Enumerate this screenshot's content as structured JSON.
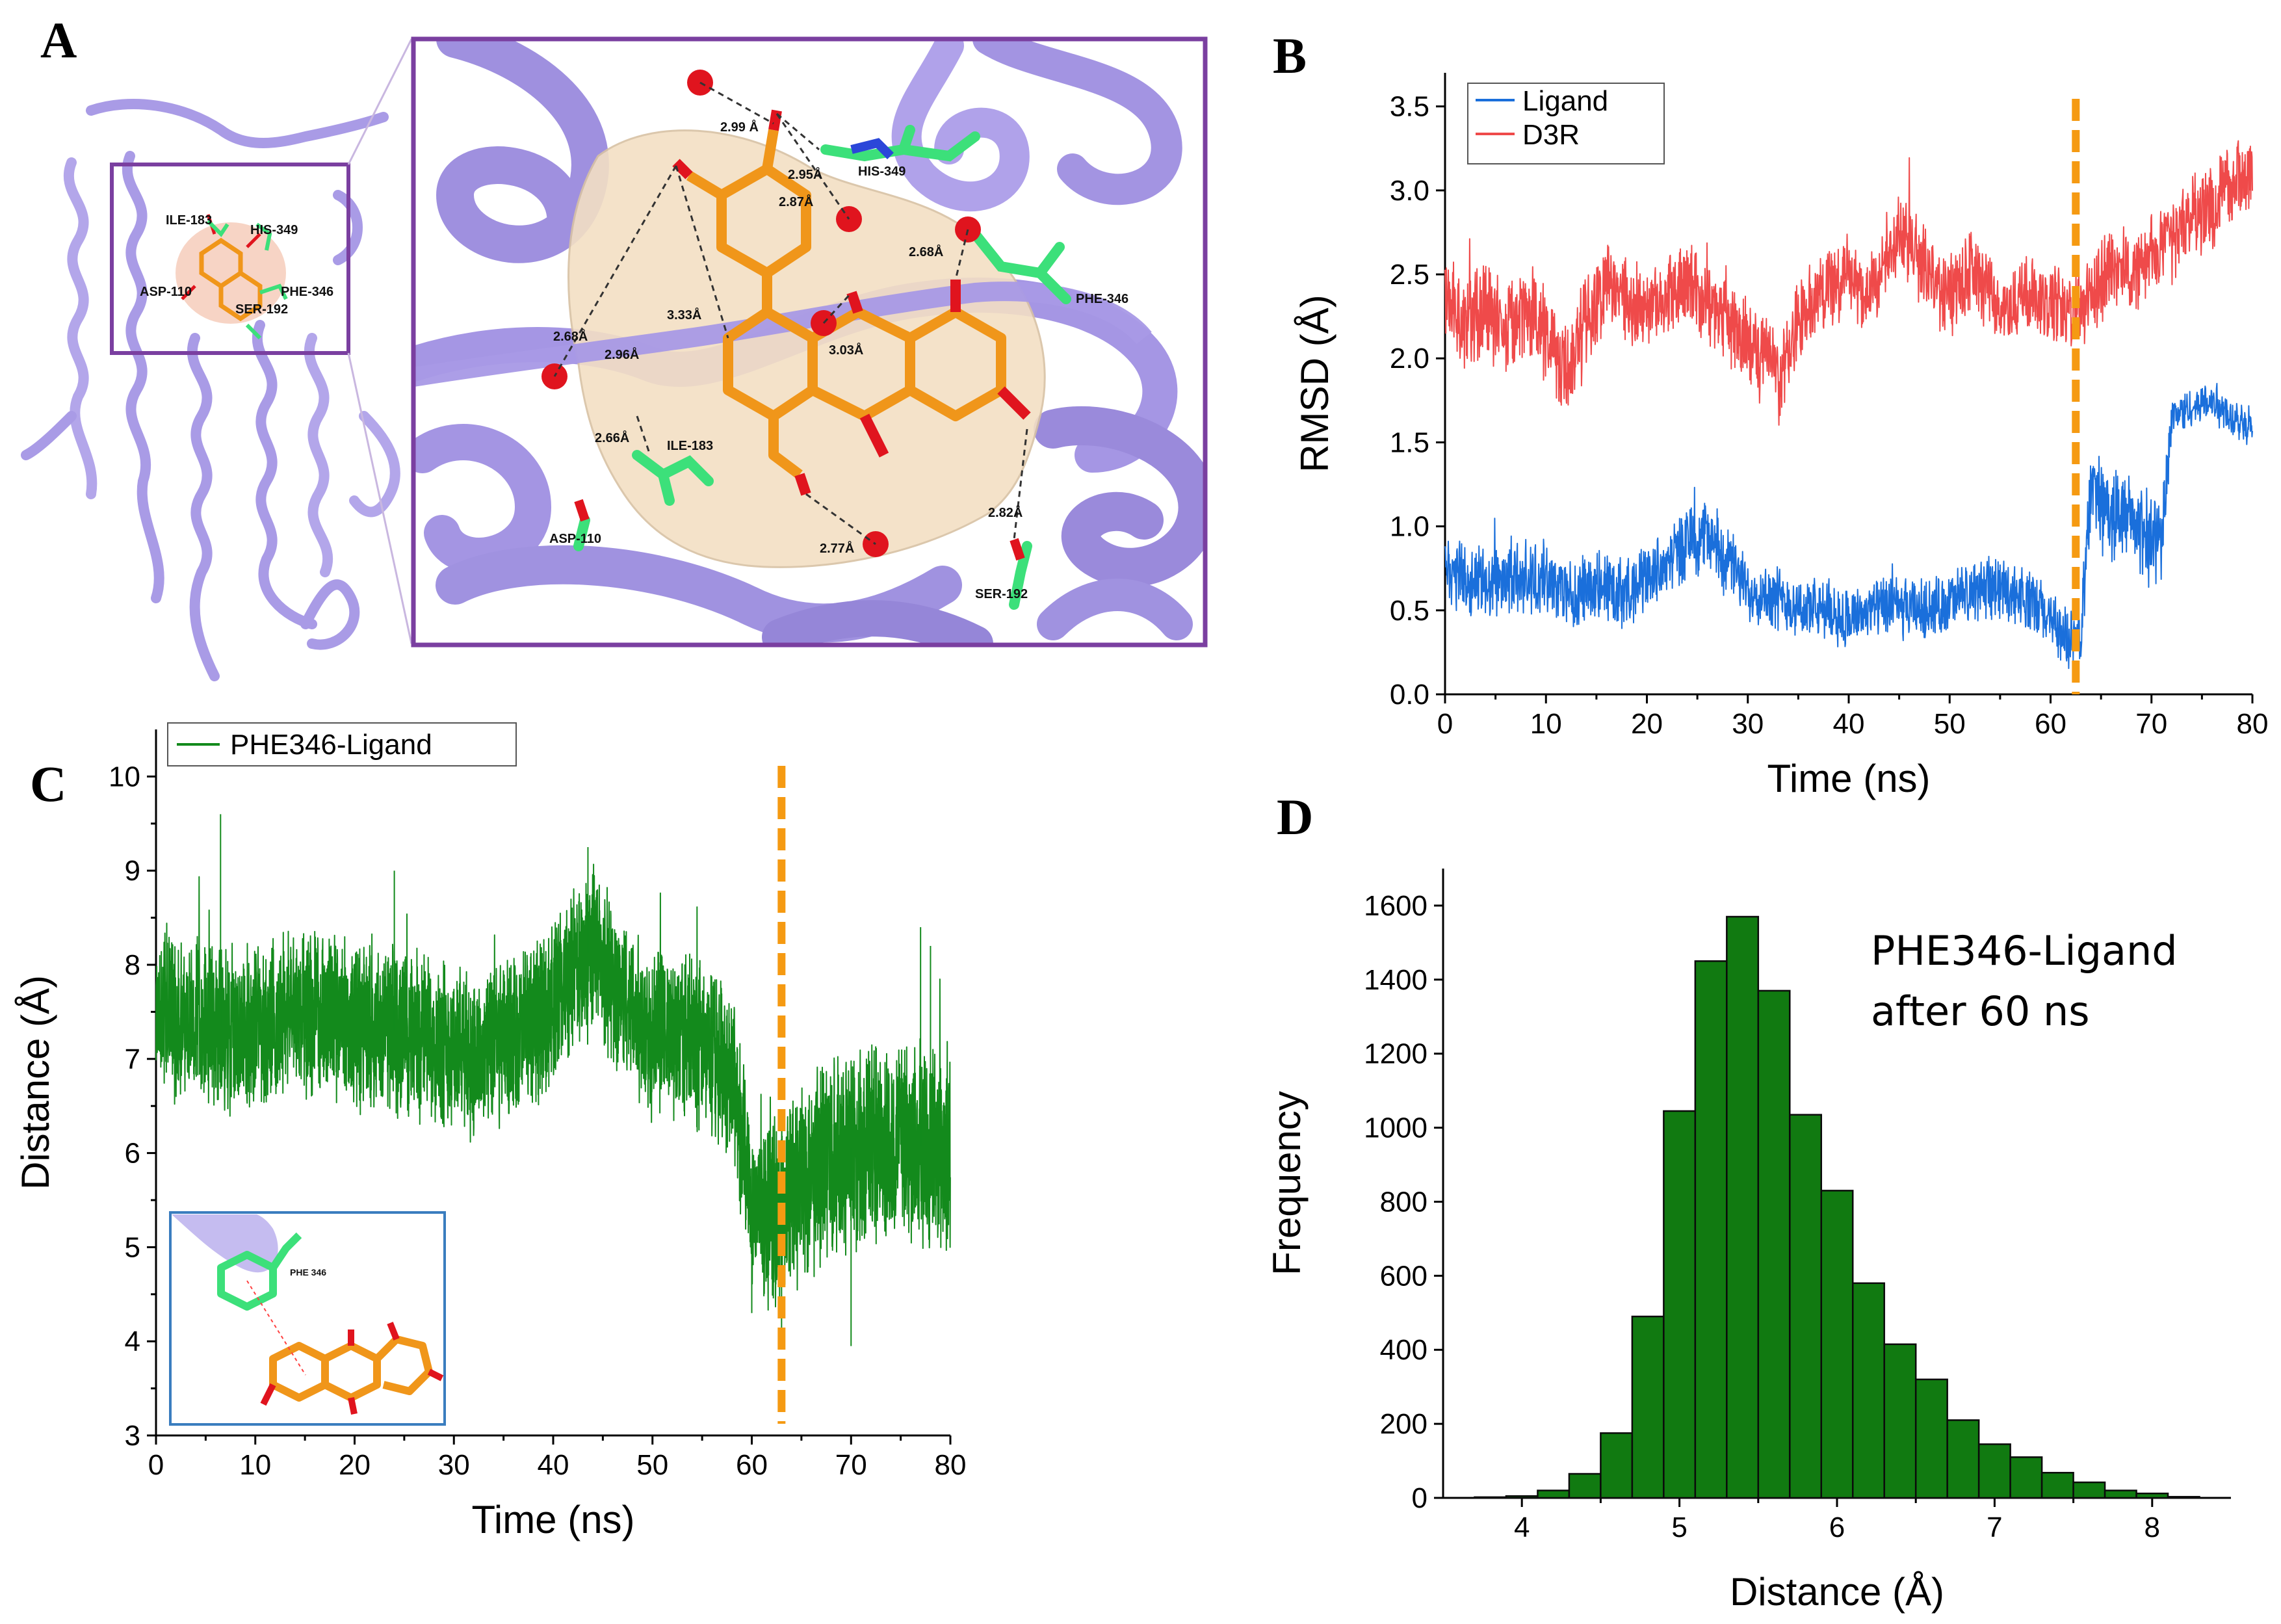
{
  "panels": {
    "A": {
      "letter": "A"
    },
    "B": {
      "letter": "B"
    },
    "C": {
      "letter": "C"
    },
    "D": {
      "letter": "D"
    }
  },
  "panelA": {
    "residues": [
      "ILE-183",
      "HIS-349",
      "ASP-110",
      "PHE-346",
      "SER-192"
    ],
    "zoom_residues": [
      "HIS-349",
      "PHE-346",
      "ILE-183",
      "ASP-110",
      "SER-192"
    ],
    "distances": [
      "2.99 Å",
      "2.95Å",
      "2.87Å",
      "2.68Å",
      "3.33Å",
      "2.68Å",
      "2.96Å",
      "3.03Å",
      "2.66Å",
      "2.77Å",
      "2.82Å"
    ],
    "colors": {
      "protein": "#a99be6",
      "ligand": "#f0961a",
      "residue": "#3ce07a",
      "surface": "#f3dfc4",
      "frame": "#7a3fa0",
      "oxygen": "#e0141e"
    }
  },
  "panelC_inset": {
    "label": "PHE 346"
  },
  "chart_data": [
    {
      "id": "B",
      "type": "line",
      "title": "",
      "xlabel": "Time (ns)",
      "ylabel": "RMSD (Å)",
      "xlim": [
        0,
        80
      ],
      "ylim": [
        0,
        3.7
      ],
      "xticks": [
        0,
        10,
        20,
        30,
        40,
        50,
        60,
        70,
        80
      ],
      "yticks": [
        0.0,
        0.5,
        1.0,
        1.5,
        2.0,
        2.5,
        3.0,
        3.5
      ],
      "ytick_labels": [
        "0.0",
        "0.5",
        "1.0",
        "1.5",
        "2.0",
        "2.5",
        "3.0",
        "3.5"
      ],
      "vline_x": 62.5,
      "legend": [
        "Ligand",
        "D3R"
      ],
      "series": [
        {
          "name": "Ligand",
          "color": "#1a6fdb",
          "x": [
            0,
            2,
            4,
            6,
            8,
            10,
            12,
            14,
            16,
            18,
            20,
            22,
            24,
            26,
            28,
            30,
            32,
            34,
            36,
            38,
            40,
            42,
            44,
            46,
            48,
            50,
            52,
            54,
            56,
            58,
            60,
            62,
            63,
            64,
            66,
            68,
            70,
            71,
            72,
            74,
            76,
            78,
            80
          ],
          "y": [
            0.75,
            0.7,
            0.65,
            0.7,
            0.7,
            0.68,
            0.6,
            0.62,
            0.65,
            0.6,
            0.7,
            0.78,
            0.9,
            0.95,
            0.8,
            0.62,
            0.6,
            0.55,
            0.5,
            0.5,
            0.45,
            0.5,
            0.52,
            0.5,
            0.5,
            0.55,
            0.6,
            0.65,
            0.62,
            0.55,
            0.45,
            0.3,
            0.35,
            1.25,
            1.05,
            1.05,
            0.9,
            0.95,
            1.65,
            1.7,
            1.75,
            1.65,
            1.62
          ],
          "noise": [
            0.35,
            0.35,
            0.35,
            0.35,
            0.35,
            0.35,
            0.35,
            0.35,
            0.35,
            0.35,
            0.35,
            0.35,
            0.35,
            0.35,
            0.35,
            0.3,
            0.3,
            0.3,
            0.3,
            0.3,
            0.3,
            0.3,
            0.3,
            0.3,
            0.3,
            0.3,
            0.3,
            0.3,
            0.3,
            0.3,
            0.3,
            0.3,
            0.3,
            0.45,
            0.45,
            0.45,
            0.45,
            0.45,
            0.2,
            0.2,
            0.2,
            0.2,
            0.2
          ]
        },
        {
          "name": "D3R",
          "color": "#ef4a4a",
          "x": [
            0,
            2,
            4,
            6,
            8,
            10,
            12,
            14,
            16,
            18,
            20,
            22,
            24,
            26,
            28,
            30,
            32,
            33,
            35,
            38,
            40,
            42,
            44,
            45,
            48,
            50,
            52,
            54,
            56,
            58,
            60,
            62,
            64,
            66,
            68,
            70,
            72,
            74,
            76,
            78,
            80
          ],
          "y": [
            2.3,
            2.25,
            2.3,
            2.2,
            2.3,
            2.15,
            1.9,
            2.2,
            2.45,
            2.35,
            2.3,
            2.4,
            2.45,
            2.35,
            2.2,
            2.1,
            2.0,
            1.85,
            2.2,
            2.45,
            2.5,
            2.4,
            2.6,
            2.75,
            2.5,
            2.35,
            2.5,
            2.4,
            2.25,
            2.4,
            2.35,
            2.3,
            2.35,
            2.55,
            2.5,
            2.6,
            2.7,
            2.85,
            2.9,
            3.05,
            3.1
          ],
          "noise": [
            0.45,
            0.45,
            0.45,
            0.45,
            0.45,
            0.45,
            0.45,
            0.45,
            0.4,
            0.4,
            0.4,
            0.4,
            0.4,
            0.4,
            0.4,
            0.4,
            0.4,
            0.4,
            0.4,
            0.4,
            0.4,
            0.4,
            0.4,
            0.4,
            0.4,
            0.4,
            0.4,
            0.4,
            0.4,
            0.4,
            0.4,
            0.4,
            0.4,
            0.4,
            0.4,
            0.4,
            0.4,
            0.4,
            0.4,
            0.4,
            0.4
          ]
        }
      ]
    },
    {
      "id": "C",
      "type": "line",
      "title": "",
      "xlabel": "Time (ns)",
      "ylabel": "Distance (Å)",
      "xlim": [
        0,
        80
      ],
      "ylim": [
        3,
        10.5
      ],
      "xticks": [
        0,
        10,
        20,
        30,
        40,
        50,
        60,
        70,
        80
      ],
      "yticks": [
        3,
        4,
        5,
        6,
        7,
        8,
        9,
        10
      ],
      "ytick_labels": [
        "3",
        "4",
        "5",
        "6",
        "7",
        "8",
        "9",
        "10"
      ],
      "vline_x": 63,
      "legend": [
        "PHE346-Ligand"
      ],
      "series": [
        {
          "name": "PHE346-Ligand",
          "color": "#138a1c",
          "x": [
            0,
            4,
            8,
            12,
            16,
            20,
            24,
            28,
            32,
            36,
            40,
            42,
            44,
            46,
            48,
            50,
            54,
            58,
            60,
            62,
            64,
            68,
            72,
            76,
            80
          ],
          "y": [
            7.5,
            7.4,
            7.3,
            7.4,
            7.5,
            7.35,
            7.3,
            7.25,
            7.0,
            7.2,
            7.6,
            7.9,
            8.2,
            7.8,
            7.5,
            7.3,
            7.2,
            6.9,
            5.5,
            5.3,
            5.6,
            6.0,
            6.1,
            6.1,
            6.0
          ],
          "noise": [
            1.4,
            1.4,
            1.4,
            1.4,
            1.4,
            1.4,
            1.4,
            1.4,
            1.4,
            1.4,
            1.4,
            1.4,
            1.4,
            1.4,
            1.4,
            1.4,
            1.4,
            1.4,
            1.4,
            1.5,
            1.7,
            1.7,
            1.7,
            1.7,
            1.7
          ]
        }
      ]
    },
    {
      "id": "D",
      "type": "bar",
      "title": "",
      "xlabel": "Distance (Å)",
      "ylabel": "Frequency",
      "xlim": [
        3.5,
        8.5
      ],
      "ylim": [
        0,
        1700
      ],
      "xticks": [
        4,
        5,
        6,
        7,
        8
      ],
      "yticks": [
        0,
        200,
        400,
        600,
        800,
        1000,
        1200,
        1400,
        1600
      ],
      "bin_width": 0.2,
      "bin_centers": [
        3.8,
        4.0,
        4.2,
        4.4,
        4.6,
        4.8,
        5.0,
        5.2,
        5.4,
        5.6,
        5.8,
        6.0,
        6.2,
        6.4,
        6.6,
        6.8,
        7.0,
        7.2,
        7.4,
        7.6,
        7.8,
        8.0,
        8.2
      ],
      "values": [
        2,
        5,
        20,
        65,
        175,
        490,
        1045,
        1450,
        1570,
        1370,
        1035,
        830,
        580,
        415,
        320,
        210,
        145,
        110,
        68,
        42,
        20,
        12,
        3
      ],
      "color": "#117a11",
      "annotation": [
        "PHE346-Ligand",
        "after 60 ns"
      ]
    }
  ]
}
